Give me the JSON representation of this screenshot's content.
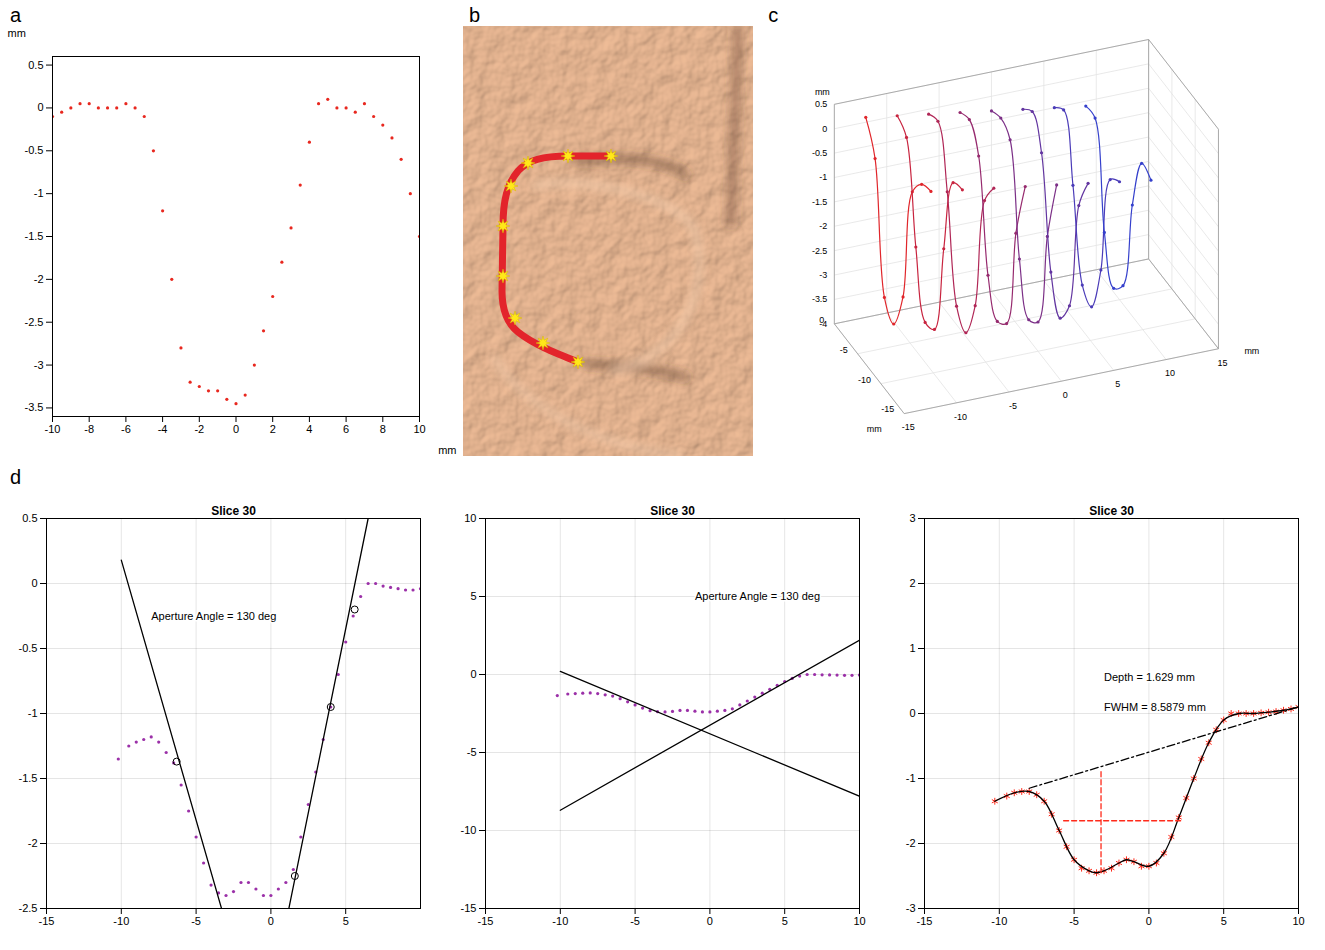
{
  "chart_data": [
    {
      "panel_label": "a",
      "type": "scatter",
      "marker": "dot",
      "color": "#e8281f",
      "grid": false,
      "x_label": "mm",
      "y_label": "mm",
      "x": [
        -10,
        -9.5,
        -9,
        -8.5,
        -8,
        -7.5,
        -7,
        -6.5,
        -6,
        -5.5,
        -5,
        -4.5,
        -4,
        -3.5,
        -3,
        -2.5,
        -2,
        -1.5,
        -1,
        -0.5,
        0,
        0.5,
        1,
        1.5,
        2,
        2.5,
        3,
        3.5,
        4,
        4.5,
        5,
        5.5,
        6,
        6.5,
        7,
        7.5,
        8,
        8.5,
        9,
        9.5,
        10
      ],
      "values": [
        -0.1,
        -0.05,
        0,
        0.05,
        0.05,
        0,
        0,
        0,
        0.05,
        0,
        -0.1,
        -0.5,
        -1.2,
        -2.0,
        -2.8,
        -3.2,
        -3.25,
        -3.3,
        -3.3,
        -3.4,
        -3.45,
        -3.35,
        -3.0,
        -2.6,
        -2.2,
        -1.8,
        -1.4,
        -0.9,
        -0.4,
        0.05,
        0.1,
        0,
        0,
        -0.05,
        0.05,
        -0.1,
        -0.2,
        -0.35,
        -0.6,
        -1.0,
        -1.5
      ],
      "xlim": [
        -10,
        10
      ],
      "xticks": [
        -10,
        -8,
        -6,
        -4,
        -2,
        0,
        2,
        4,
        6,
        8,
        10
      ],
      "ylim": [
        -3.6,
        0.6
      ],
      "yticks": [
        0.5,
        0,
        -0.5,
        -1,
        -1.5,
        -2,
        -2.5,
        -3,
        -3.5
      ]
    },
    {
      "panel_label": "b",
      "type": "image"
    },
    {
      "panel_label": "c",
      "type": "scatter3d",
      "marker": "dot",
      "x_label": "mm",
      "y_label": "mm",
      "z_label": "mm",
      "xlim": [
        0,
        -15
      ],
      "xticks": [
        0,
        -5,
        -10,
        -15
      ],
      "ylim": [
        -15,
        15
      ],
      "yticks": [
        -15,
        -10,
        -5,
        0,
        5,
        10,
        15
      ],
      "zlim": [
        -4,
        0.5
      ],
      "zticks": [
        0.5,
        0,
        -0.5,
        -1,
        -1.5,
        -2,
        -2.5,
        -3,
        -3.5,
        -4
      ],
      "series": [
        {
          "color": "#e0262b",
          "x": [
            -14,
            -12,
            -10,
            -8,
            -6,
            -4,
            -2,
            0
          ],
          "y": [
            -12,
            -12,
            -12,
            -12,
            -12,
            -12,
            -12,
            -12
          ],
          "z": [
            0.3,
            0.2,
            -0.2,
            -2.6,
            -3.4,
            -3.1,
            -0.5,
            0.1
          ]
        },
        {
          "color": "#c8243f",
          "x": [
            -14,
            -12,
            -10,
            -8,
            -6,
            -4,
            -2,
            0
          ],
          "y": [
            -9,
            -9,
            -9,
            -9,
            -9,
            -9,
            -9,
            -9
          ],
          "z": [
            0.2,
            0.1,
            -1.5,
            -3.4,
            -3.5,
            -2.2,
            -0.2,
            0
          ]
        },
        {
          "color": "#b02656",
          "x": [
            -14,
            -12,
            -10,
            -8,
            -6,
            -4,
            -2,
            0
          ],
          "y": [
            -6,
            -6,
            -6,
            -6,
            -6,
            -6,
            -6,
            -6
          ],
          "z": [
            0.1,
            -0.4,
            -2.8,
            -3.6,
            -3.3,
            -1.2,
            0,
            -0.1
          ]
        },
        {
          "color": "#962a6e",
          "x": [
            -14,
            -12,
            -10,
            -8,
            -6,
            -4,
            -2,
            0
          ],
          "y": [
            -3,
            -3,
            -3,
            -3,
            -3,
            -3,
            -3,
            -3
          ],
          "z": [
            0,
            -1.2,
            -3.3,
            -3.5,
            -2.8,
            -0.6,
            -0.1,
            -0.2
          ]
        },
        {
          "color": "#7c3087",
          "x": [
            -14,
            -12,
            -10,
            -8,
            -6,
            -4,
            -2,
            0
          ],
          "y": [
            0,
            0,
            0,
            0,
            0,
            0,
            0,
            0
          ],
          "z": [
            -0.1,
            -1.4,
            -3.4,
            -3.6,
            -2.6,
            -0.4,
            -0.2,
            -0.3
          ]
        },
        {
          "color": "#6235a0",
          "x": [
            -14,
            -12,
            -10,
            -8,
            -6,
            -4,
            -2,
            0
          ],
          "y": [
            3,
            3,
            3,
            3,
            3,
            3,
            3,
            3
          ],
          "z": [
            -0.2,
            -0.9,
            -3.2,
            -3.7,
            -3.0,
            -0.8,
            -0.2,
            -0.4
          ]
        },
        {
          "color": "#4a3bb8",
          "x": [
            -14,
            -12,
            -10,
            -8,
            -6,
            -4,
            -2,
            0
          ],
          "y": [
            6,
            6,
            6,
            6,
            6,
            6,
            6,
            6
          ],
          "z": [
            -0.3,
            -0.5,
            -2.6,
            -3.6,
            -3.4,
            -1.6,
            -0.3,
            -0.5
          ]
        },
        {
          "color": "#3540cc",
          "x": [
            -14,
            -12,
            -10,
            -8,
            -6,
            -4,
            -2,
            0
          ],
          "y": [
            9,
            9,
            9,
            9,
            9,
            9,
            9,
            9
          ],
          "z": [
            -0.4,
            -0.3,
            -1.4,
            -3.3,
            -3.6,
            -2.7,
            -0.6,
            -0.6
          ]
        }
      ]
    },
    {
      "panel_label": "d",
      "type": "scatter",
      "title": "Slice 30",
      "grid": true,
      "xlim": [
        -15,
        10
      ],
      "xticks": [
        -15,
        -10,
        -5,
        0,
        5
      ],
      "ylim": [
        -2.5,
        0.5
      ],
      "yticks": [
        -2.5,
        -2,
        -1.5,
        -1,
        -0.5,
        0,
        0.5
      ],
      "annotations": [
        {
          "text": "Aperture Angle = 130 deg",
          "x": -8,
          "y": -0.25
        }
      ],
      "series": [
        {
          "type": "scatter",
          "marker": "dot",
          "color": "#9b30a8",
          "x": [
            -10.2,
            -9.5,
            -9,
            -8.5,
            -8,
            -7.5,
            -7,
            -6.5,
            -6,
            -5.5,
            -5,
            -4.5,
            -4,
            -3.5,
            -3,
            -2.5,
            -2,
            -1.5,
            -1,
            -0.5,
            0,
            0.5,
            1,
            1.5,
            2,
            2.5,
            3,
            3.5,
            4,
            4.5,
            5,
            5.5,
            6,
            6.5,
            7,
            7.5,
            8,
            8.5,
            9,
            9.5,
            10
          ],
          "values": [
            -1.35,
            -1.25,
            -1.22,
            -1.2,
            -1.18,
            -1.22,
            -1.3,
            -1.38,
            -1.55,
            -1.75,
            -1.95,
            -2.15,
            -2.32,
            -2.38,
            -2.4,
            -2.37,
            -2.3,
            -2.3,
            -2.35,
            -2.4,
            -2.4,
            -2.35,
            -2.3,
            -2.2,
            -1.95,
            -1.7,
            -1.45,
            -1.2,
            -0.95,
            -0.7,
            -0.45,
            -0.25,
            -0.1,
            0,
            0,
            -0.02,
            -0.03,
            -0.04,
            -0.05,
            -0.05,
            -0.04
          ]
        },
        {
          "type": "line",
          "line_style": "solid",
          "color": "#000000",
          "x": [
            -10,
            -3.3
          ],
          "values": [
            0.18,
            -2.5
          ]
        },
        {
          "type": "line",
          "line_style": "solid",
          "color": "#000000",
          "x": [
            1.2,
            6.5
          ],
          "values": [
            -2.5,
            0.5
          ]
        },
        {
          "type": "scatter",
          "marker": "circle",
          "color": "#000000",
          "x": [
            -6.3,
            1.6,
            4,
            5.6
          ],
          "values": [
            -1.37,
            -2.25,
            -0.95,
            -0.2
          ]
        }
      ]
    },
    {
      "type": "scatter",
      "title": "Slice 30",
      "grid": true,
      "xlim": [
        -15,
        10
      ],
      "xticks": [
        -15,
        -10,
        -5,
        0,
        5,
        10
      ],
      "ylim": [
        -15,
        10
      ],
      "yticks": [
        -15,
        -10,
        -5,
        0,
        5,
        10
      ],
      "annotations": [
        {
          "text": "Aperture Angle = 130 deg",
          "x": -1,
          "y": 5
        }
      ],
      "series": [
        {
          "type": "scatter",
          "marker": "dot",
          "color": "#9b30a8",
          "x": [
            -10.2,
            -9.5,
            -9,
            -8.5,
            -8,
            -7.5,
            -7,
            -6.5,
            -6,
            -5.5,
            -5,
            -4.5,
            -4,
            -3.5,
            -3,
            -2.5,
            -2,
            -1.5,
            -1,
            -0.5,
            0,
            0.5,
            1,
            1.5,
            2,
            2.5,
            3,
            3.5,
            4,
            4.5,
            5,
            5.5,
            6,
            6.5,
            7,
            7.5,
            8,
            8.5,
            9,
            9.5,
            10
          ],
          "values": [
            -1.35,
            -1.25,
            -1.22,
            -1.2,
            -1.18,
            -1.22,
            -1.3,
            -1.38,
            -1.55,
            -1.75,
            -1.95,
            -2.15,
            -2.32,
            -2.38,
            -2.4,
            -2.37,
            -2.3,
            -2.3,
            -2.35,
            -2.4,
            -2.4,
            -2.35,
            -2.3,
            -2.2,
            -1.95,
            -1.7,
            -1.45,
            -1.2,
            -0.95,
            -0.7,
            -0.45,
            -0.25,
            -0.1,
            0,
            0,
            -0.02,
            -0.03,
            -0.04,
            -0.05,
            -0.05,
            -0.04
          ]
        },
        {
          "type": "line",
          "line_style": "solid",
          "color": "#000000",
          "x": [
            -10,
            10
          ],
          "values": [
            0.2,
            -7.8
          ]
        },
        {
          "type": "line",
          "line_style": "solid",
          "color": "#000000",
          "x": [
            -10,
            10
          ],
          "values": [
            -8.7,
            2.2
          ]
        }
      ]
    },
    {
      "type": "scatter",
      "title": "Slice 30",
      "grid": true,
      "xlim": [
        -15,
        10
      ],
      "xticks": [
        -15,
        -10,
        -5,
        0,
        5,
        10
      ],
      "ylim": [
        -3,
        3
      ],
      "yticks": [
        -3,
        -2,
        -1,
        0,
        1,
        2,
        3
      ],
      "annotations": [
        {
          "text": "Depth = 1.629 mm",
          "x": -3,
          "y": 0.55
        },
        {
          "text": "FWHM = 8.5879 mm",
          "x": -3,
          "y": 0.1
        }
      ],
      "series": [
        {
          "type": "scatter",
          "marker": "asterisk",
          "color": "#ff2a1a",
          "x": [
            -10.3,
            -9.5,
            -9,
            -8.5,
            -8,
            -7.5,
            -7,
            -6.5,
            -6,
            -5.5,
            -5,
            -4.5,
            -4,
            -3.5,
            -3,
            -2.5,
            -2,
            -1.5,
            -1,
            -0.5,
            0,
            0.5,
            1,
            1.5,
            2,
            2.5,
            3,
            3.5,
            4,
            4.5,
            5,
            5.5,
            6,
            6.5,
            7,
            7.5,
            8,
            8.5,
            9,
            9.5,
            10
          ],
          "values": [
            -1.35,
            -1.27,
            -1.22,
            -1.2,
            -1.2,
            -1.25,
            -1.35,
            -1.55,
            -1.8,
            -2.05,
            -2.25,
            -2.38,
            -2.42,
            -2.45,
            -2.42,
            -2.38,
            -2.3,
            -2.25,
            -2.28,
            -2.35,
            -2.35,
            -2.3,
            -2.15,
            -1.9,
            -1.6,
            -1.3,
            -1.0,
            -0.7,
            -0.45,
            -0.25,
            -0.1,
            0,
            0,
            0,
            0,
            0.01,
            0.02,
            0.03,
            0.05,
            0.07,
            0.1
          ]
        },
        {
          "type": "line",
          "line_style": "solid",
          "color": "#000000",
          "x": [
            -10.3,
            -9,
            -8,
            -7,
            -6,
            -5,
            -4,
            -3.5,
            -3,
            -2,
            -1.5,
            -1,
            0,
            1,
            2,
            3,
            4,
            5,
            6,
            7,
            8,
            9,
            10
          ],
          "values": [
            -1.35,
            -1.22,
            -1.2,
            -1.35,
            -1.8,
            -2.25,
            -2.42,
            -2.45,
            -2.42,
            -2.3,
            -2.25,
            -2.28,
            -2.35,
            -2.15,
            -1.6,
            -1.0,
            -0.45,
            -0.1,
            0,
            0,
            0.02,
            0.05,
            0.1
          ]
        },
        {
          "type": "line",
          "line_style": "dashdot",
          "color": "#000000",
          "x": [
            -8,
            10
          ],
          "values": [
            -1.15,
            0.1
          ]
        },
        {
          "type": "line",
          "line_style": "dashed",
          "color": "#ff2a1a",
          "x": [
            -3.2,
            -3.2
          ],
          "values": [
            -2.45,
            -0.85
          ]
        },
        {
          "type": "line",
          "line_style": "dashed",
          "color": "#ff2a1a",
          "x": [
            -5.7,
            2.3
          ],
          "values": [
            -1.65,
            -1.65
          ]
        }
      ]
    }
  ]
}
